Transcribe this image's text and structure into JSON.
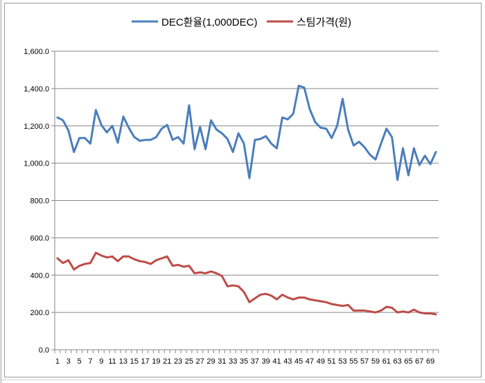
{
  "colors": {
    "series1": "#4a7ebb",
    "series2": "#be4b48",
    "grid": "#868686"
  },
  "chart_data": {
    "type": "line",
    "title": "",
    "xlabel": "",
    "ylabel": "",
    "ylim": [
      0,
      1600
    ],
    "yticks": [
      0,
      200,
      400,
      600,
      800,
      1000,
      1200,
      1400,
      1600
    ],
    "ytick_labels": [
      "0.0",
      "200.0",
      "400.0",
      "600.0",
      "800.0",
      "1,000.0",
      "1,200.0",
      "1,400.0",
      "1,600.0"
    ],
    "grid": true,
    "legend_position": "top",
    "x": [
      1,
      2,
      3,
      4,
      5,
      6,
      7,
      8,
      9,
      10,
      11,
      12,
      13,
      14,
      15,
      16,
      17,
      18,
      19,
      20,
      21,
      22,
      23,
      24,
      25,
      26,
      27,
      28,
      29,
      30,
      31,
      32,
      33,
      34,
      35,
      36,
      37,
      38,
      39,
      40,
      41,
      42,
      43,
      44,
      45,
      46,
      47,
      48,
      49,
      50,
      51,
      52,
      53,
      54,
      55,
      56,
      57,
      58,
      59,
      60,
      61,
      62,
      63,
      64,
      65,
      66,
      67,
      68,
      69,
      70
    ],
    "xtick_labels": [
      "1",
      "3",
      "5",
      "7",
      "9",
      "11",
      "13",
      "15",
      "17",
      "19",
      "21",
      "23",
      "25",
      "27",
      "29",
      "31",
      "33",
      "35",
      "37",
      "39",
      "41",
      "43",
      "45",
      "47",
      "49",
      "51",
      "53",
      "55",
      "57",
      "59",
      "61",
      "63",
      "65",
      "67",
      "69"
    ],
    "series": [
      {
        "name": "DEC환율(1,000DEC)",
        "values": [
          1245,
          1230,
          1175,
          1060,
          1135,
          1135,
          1105,
          1285,
          1205,
          1165,
          1200,
          1110,
          1250,
          1190,
          1140,
          1120,
          1125,
          1125,
          1140,
          1185,
          1205,
          1125,
          1140,
          1105,
          1310,
          1075,
          1195,
          1075,
          1230,
          1180,
          1160,
          1130,
          1060,
          1160,
          1105,
          920,
          1125,
          1130,
          1145,
          1105,
          1080,
          1245,
          1235,
          1265,
          1415,
          1405,
          1290,
          1220,
          1190,
          1185,
          1135,
          1200,
          1345,
          1180,
          1095,
          1115,
          1085,
          1045,
          1020,
          1105,
          1185,
          1140,
          910,
          1080,
          935,
          1080,
          990,
          1040,
          995,
          1060
        ]
      },
      {
        "name": "스팀가격(원)",
        "values": [
          490,
          465,
          480,
          430,
          450,
          460,
          465,
          520,
          505,
          495,
          500,
          475,
          500,
          500,
          485,
          475,
          470,
          460,
          480,
          490,
          500,
          450,
          455,
          445,
          450,
          410,
          415,
          410,
          420,
          410,
          395,
          340,
          345,
          340,
          310,
          255,
          275,
          295,
          300,
          290,
          270,
          295,
          280,
          270,
          280,
          280,
          270,
          265,
          260,
          255,
          245,
          240,
          235,
          240,
          210,
          210,
          210,
          205,
          200,
          210,
          230,
          225,
          200,
          205,
          200,
          215,
          200,
          195,
          195,
          190
        ]
      }
    ]
  }
}
